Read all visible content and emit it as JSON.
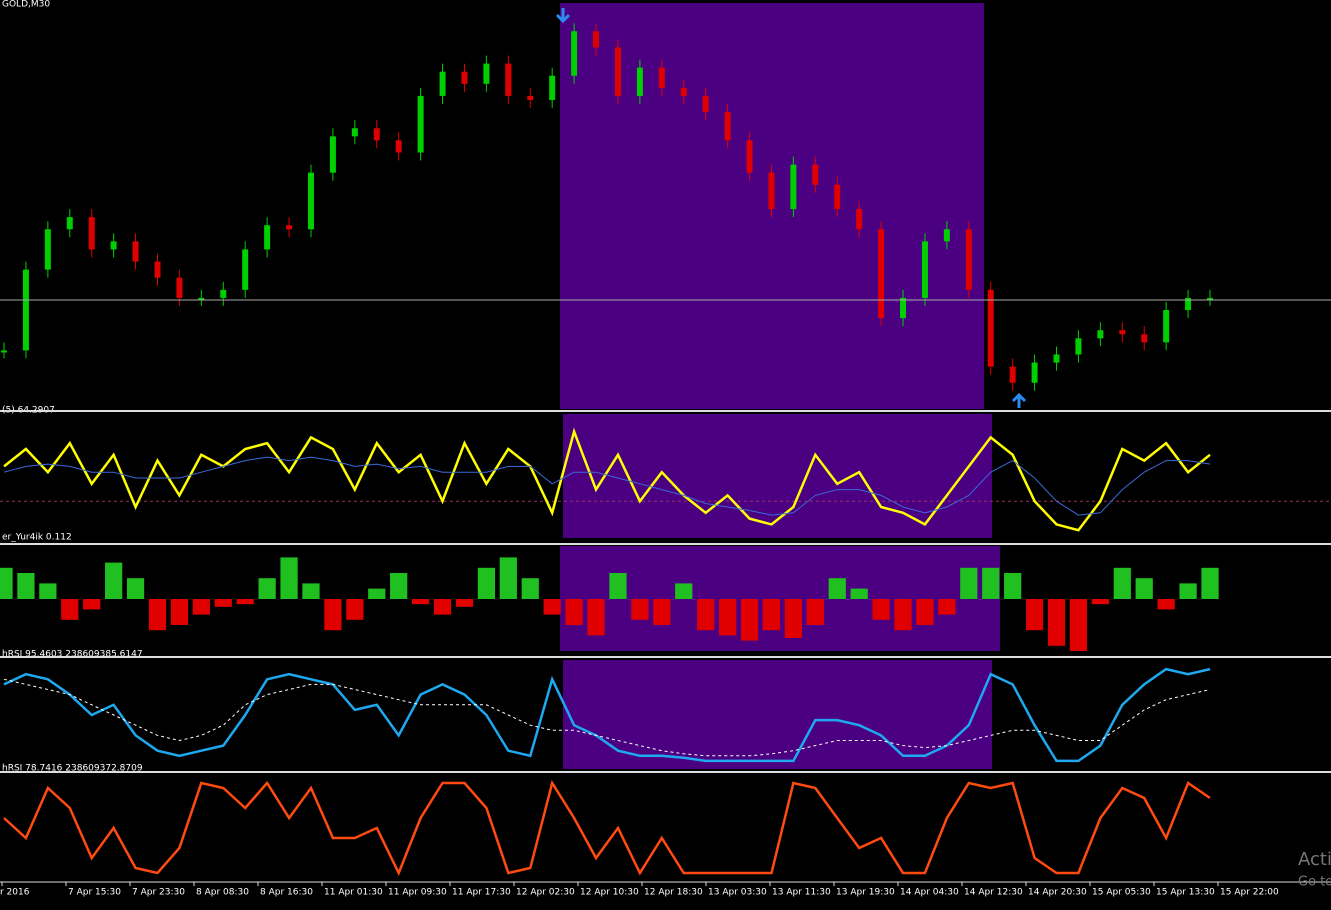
{
  "chart_data": [
    {
      "type": "candlestick",
      "title": "GOLD,M30",
      "ylim": [
        0,
        100
      ],
      "color_up": "#00d000",
      "color_down": "#e00000",
      "highlight": "#4b0082",
      "values": [
        14,
        34,
        44,
        47,
        39,
        41,
        36,
        32,
        27,
        27,
        29,
        39,
        45,
        44,
        58,
        67,
        69,
        66,
        63,
        77,
        83,
        80,
        85,
        77,
        76,
        82,
        93,
        89,
        77,
        84,
        79,
        77,
        73,
        66,
        58,
        49,
        60,
        55,
        49,
        44,
        22,
        27,
        41,
        44,
        29,
        10,
        6,
        11,
        13,
        17,
        19,
        18,
        16,
        24,
        27,
        27
      ]
    },
    {
      "type": "line",
      "title": "(5) 64.2907",
      "ylim": [
        0,
        100
      ],
      "level": 30,
      "level_color": "#a0306a",
      "highlight": "#4b0082",
      "series": [
        {
          "color": "#ffff00",
          "values": [
            60,
            75,
            55,
            80,
            45,
            70,
            25,
            65,
            35,
            70,
            60,
            75,
            80,
            55,
            85,
            75,
            40,
            80,
            55,
            70,
            30,
            80,
            45,
            75,
            60,
            20,
            90,
            40,
            70,
            30,
            55,
            35,
            20,
            35,
            15,
            10,
            25,
            70,
            45,
            55,
            25,
            20,
            10,
            35,
            60,
            85,
            70,
            30,
            10,
            5,
            30,
            75,
            65,
            80,
            55,
            70
          ]
        },
        {
          "color": "#3a6ad8",
          "values": [
            55,
            60,
            62,
            60,
            55,
            55,
            50,
            50,
            50,
            55,
            60,
            65,
            68,
            65,
            68,
            65,
            60,
            62,
            58,
            60,
            55,
            55,
            55,
            60,
            60,
            45,
            55,
            55,
            50,
            45,
            40,
            35,
            28,
            25,
            22,
            18,
            20,
            35,
            40,
            40,
            35,
            25,
            20,
            25,
            35,
            55,
            65,
            50,
            30,
            18,
            20,
            40,
            55,
            65,
            65,
            62
          ]
        }
      ]
    },
    {
      "type": "bar",
      "title": "er_Yur4ik 0.112",
      "ylim": [
        -100,
        100
      ],
      "color_up": "#20c020",
      "color_down": "#e00000",
      "highlight": "#4b0082",
      "values": [
        60,
        50,
        30,
        -40,
        -20,
        70,
        40,
        -60,
        -50,
        -30,
        -15,
        -10,
        40,
        80,
        30,
        -60,
        -40,
        20,
        50,
        -10,
        -30,
        -15,
        60,
        80,
        40,
        -30,
        -50,
        -70,
        50,
        -40,
        -50,
        30,
        -60,
        -70,
        -80,
        -60,
        -75,
        -50,
        40,
        20,
        -40,
        -60,
        -50,
        -30,
        60,
        60,
        50,
        -60,
        -90,
        -100,
        -10,
        60,
        40,
        -20,
        30,
        60
      ]
    },
    {
      "type": "line",
      "title": "hRSI 95.4603 238609385.6147",
      "ylim": [
        0,
        100
      ],
      "highlight": "#4b0082",
      "series": [
        {
          "color": "#1ea8f0",
          "values": [
            80,
            90,
            85,
            70,
            50,
            60,
            30,
            15,
            10,
            15,
            20,
            50,
            85,
            90,
            85,
            80,
            55,
            60,
            30,
            70,
            80,
            70,
            50,
            15,
            10,
            85,
            40,
            30,
            15,
            10,
            10,
            8,
            5,
            5,
            5,
            5,
            5,
            45,
            45,
            40,
            30,
            10,
            10,
            20,
            40,
            90,
            80,
            40,
            5,
            5,
            20,
            60,
            80,
            95,
            90,
            95
          ]
        },
        {
          "color": "#ffffff",
          "dashed": true,
          "values": [
            85,
            80,
            75,
            70,
            60,
            50,
            40,
            30,
            25,
            30,
            40,
            60,
            70,
            75,
            80,
            80,
            75,
            70,
            65,
            60,
            60,
            60,
            60,
            50,
            40,
            35,
            35,
            30,
            25,
            20,
            15,
            12,
            10,
            10,
            10,
            12,
            15,
            20,
            25,
            25,
            25,
            20,
            18,
            20,
            25,
            30,
            35,
            35,
            30,
            25,
            25,
            40,
            55,
            65,
            70,
            75
          ]
        }
      ]
    },
    {
      "type": "line",
      "title": "hRSI 78.7416 238609372.8709",
      "ylim": [
        0,
        100
      ],
      "series": [
        {
          "color": "#ff4a10",
          "values": [
            60,
            40,
            90,
            70,
            20,
            50,
            10,
            5,
            30,
            95,
            90,
            70,
            95,
            60,
            90,
            40,
            40,
            50,
            5,
            60,
            95,
            95,
            70,
            5,
            10,
            95,
            60,
            20,
            50,
            5,
            40,
            5,
            5,
            5,
            5,
            5,
            95,
            90,
            60,
            30,
            40,
            5,
            5,
            60,
            95,
            90,
            95,
            20,
            5,
            5,
            60,
            90,
            80,
            40,
            95,
            80
          ]
        }
      ]
    }
  ],
  "time_axis": [
    "r 2016",
    "7 Apr 15:30",
    "7 Apr 23:30",
    "8 Apr 08:30",
    "8 Apr 16:30",
    "11 Apr 01:30",
    "11 Apr 09:30",
    "11 Apr 17:30",
    "12 Apr 02:30",
    "12 Apr 10:30",
    "12 Apr 18:30",
    "13 Apr 03:30",
    "13 Apr 11:30",
    "13 Apr 19:30",
    "14 Apr 04:30",
    "14 Apr 12:30",
    "14 Apr 20:30",
    "15 Apr 05:30",
    "15 Apr 13:30",
    "15 Apr 22:00"
  ],
  "watermark": [
    "Acti",
    "Go to"
  ]
}
